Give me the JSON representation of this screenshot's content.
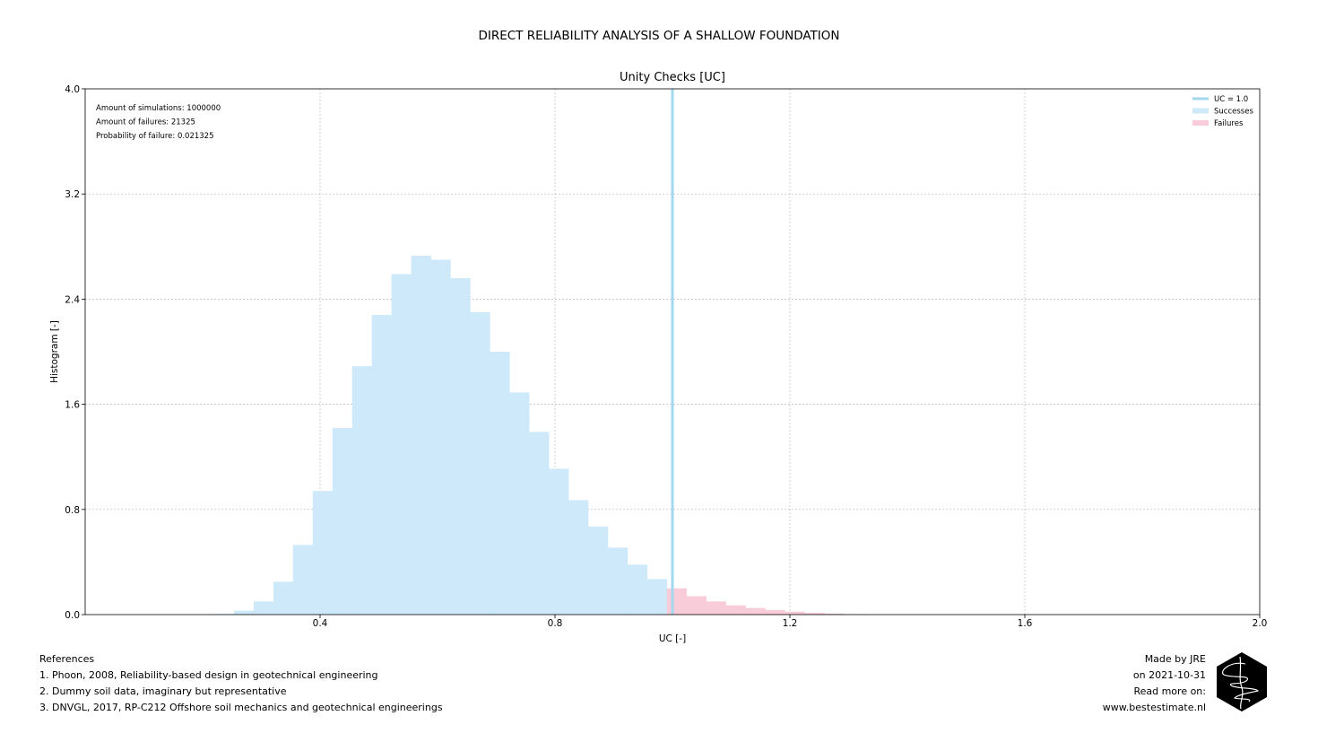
{
  "suptitle": "DIRECT RELIABILITY ANALYSIS OF A SHALLOW FOUNDATION",
  "chart_data": {
    "type": "bar",
    "title": "Unity Checks [UC]",
    "xlabel": "UC [-]",
    "ylabel": "Histogram [-]",
    "xlim": [
      0.0,
      2.0
    ],
    "ylim": [
      0.0,
      4.0
    ],
    "xticks": [
      "0.4",
      "0.8",
      "1.2",
      "1.6",
      "2.0"
    ],
    "yticks": [
      "0.0",
      "0.8",
      "1.6",
      "2.4",
      "3.2",
      "4.0"
    ],
    "grid": true,
    "legend_position": "top-right",
    "bin_width": 0.0335,
    "series": [
      {
        "name": "Successes",
        "color": "#cde9fa",
        "bin_starts": [
          0.22,
          0.2535,
          0.287,
          0.3205,
          0.354,
          0.3875,
          0.421,
          0.4545,
          0.488,
          0.5215,
          0.555,
          0.5885,
          0.622,
          0.6555,
          0.689,
          0.7225,
          0.756,
          0.7895,
          0.823,
          0.8565,
          0.89,
          0.9235,
          0.957
        ],
        "values": [
          0.005,
          0.03,
          0.1,
          0.25,
          0.53,
          0.94,
          1.42,
          1.89,
          2.28,
          2.59,
          2.73,
          2.7,
          2.56,
          2.3,
          2.0,
          1.69,
          1.39,
          1.11,
          0.87,
          0.67,
          0.51,
          0.38,
          0.27
        ]
      },
      {
        "name": "Failures",
        "color": "#f8ccd8",
        "bin_starts": [
          0.9905,
          1.024,
          1.0575,
          1.091,
          1.1245,
          1.158,
          1.1915,
          1.225,
          1.2585,
          1.292
        ],
        "values": [
          0.2,
          0.14,
          0.1,
          0.07,
          0.05,
          0.035,
          0.022,
          0.013,
          0.007,
          0.003
        ]
      }
    ],
    "reference_line": {
      "label": "UC = 1.0",
      "x": 1.0,
      "color": "#a3d9ef"
    },
    "annotations": [
      "Amount of simulations: 1000000",
      "Amount of failures: 21325",
      "Probability of failure: 0.021325"
    ]
  },
  "references": {
    "heading": "References",
    "items": [
      "1. Phoon, 2008, Reliability-based design in geotechnical engineering",
      "2. Dummy soil data, imaginary but representative",
      "3. DNVGL, 2017, RP-C212 Offshore soil mechanics and geotechnical engineerings"
    ]
  },
  "credits": {
    "lines": [
      "Made by JRE",
      "on 2021-10-31",
      "Read more on:",
      "www.bestestimate.nl"
    ]
  },
  "logo": {
    "icon": "hexagon-signature-logo",
    "color": "#000000"
  }
}
